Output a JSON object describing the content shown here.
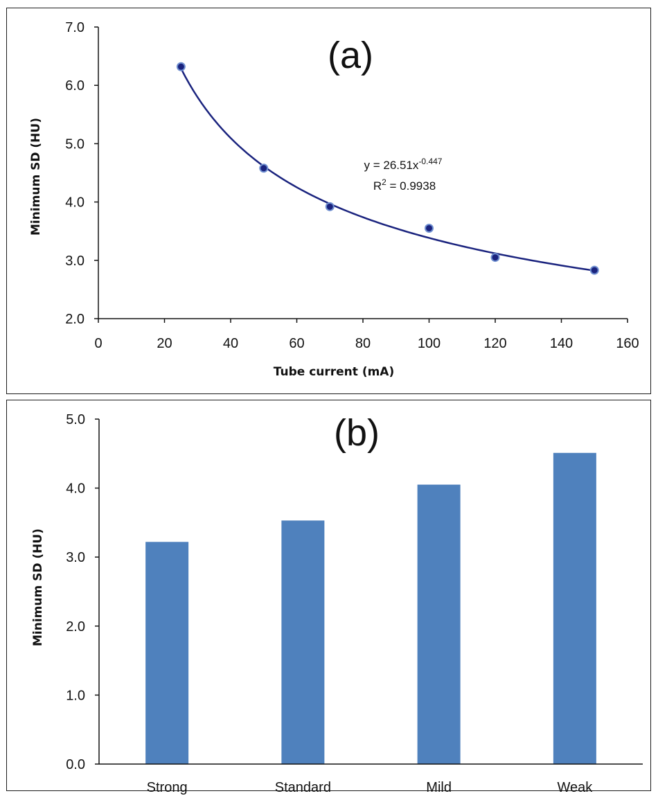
{
  "chart_data": [
    {
      "type": "scatter",
      "panel_label": "(a)",
      "xlabel": "Tube current (mA)",
      "ylabel": "Minimum SD (HU)",
      "xlim": [
        0,
        160
      ],
      "ylim": [
        2.0,
        7.0
      ],
      "x_ticks": [
        "0",
        "20",
        "40",
        "60",
        "80",
        "100",
        "120",
        "140",
        "160"
      ],
      "y_ticks": [
        "2.0",
        "3.0",
        "4.0",
        "5.0",
        "6.0",
        "7.0"
      ],
      "series": [
        {
          "x": [
            25,
            50,
            70,
            100,
            120,
            150
          ],
          "y": [
            6.32,
            4.58,
            3.92,
            3.55,
            3.05,
            2.83
          ]
        }
      ],
      "trendline": {
        "type": "power",
        "coef": 26.51,
        "exponent": -0.447,
        "equation_prefix": "y = 26.51x",
        "equation_exponent": "-0.447",
        "r2_prefix": "R",
        "r2_sup": "2",
        "r2_value": " = 0.9938"
      },
      "colors": {
        "marker": "#1a237e",
        "marker_edge": "#6f8fd0",
        "trendline": "#1a237e"
      }
    },
    {
      "type": "bar",
      "panel_label": "(b)",
      "xlabel": "",
      "ylabel": "Minimum SD (HU)",
      "ylim": [
        0.0,
        5.0
      ],
      "y_ticks": [
        "0.0",
        "1.0",
        "2.0",
        "3.0",
        "4.0",
        "5.0"
      ],
      "categories": [
        "Strong",
        "Standard",
        "Mild",
        "Weak"
      ],
      "values": [
        3.22,
        3.53,
        4.05,
        4.51
      ],
      "colors": {
        "bar": "#4f81bd"
      }
    }
  ]
}
